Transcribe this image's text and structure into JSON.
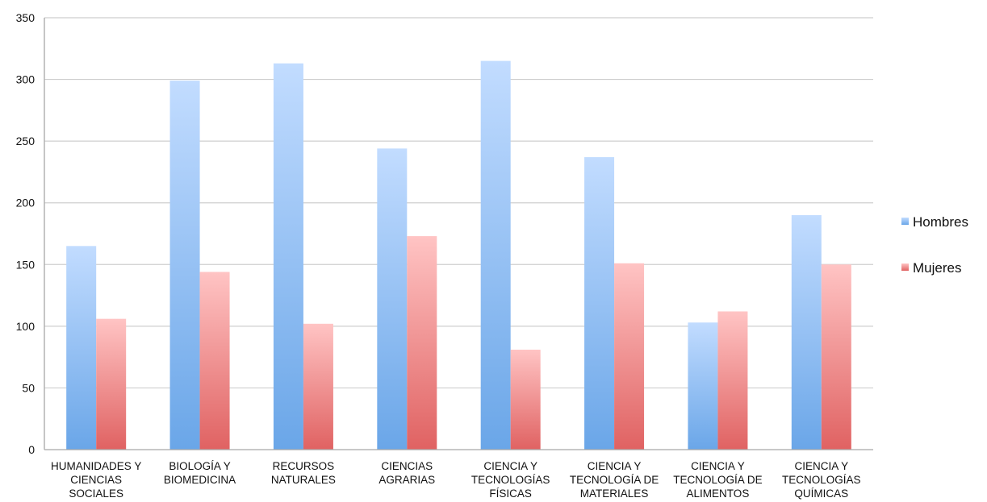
{
  "chart_data": {
    "type": "bar",
    "categories": [
      [
        "HUMANIDADES Y",
        "CIENCIAS",
        "SOCIALES"
      ],
      [
        "BIOLOGÍA Y",
        "BIOMEDICINA"
      ],
      [
        "RECURSOS",
        "NATURALES"
      ],
      [
        "CIENCIAS",
        "AGRARIAS"
      ],
      [
        "CIENCIA Y",
        "TECNOLOGÍAS",
        "FÍSICAS"
      ],
      [
        "CIENCIA Y",
        "TECNOLOGÍA DE",
        "MATERIALES"
      ],
      [
        "CIENCIA Y",
        "TECNOLOGÍA DE",
        "ALIMENTOS"
      ],
      [
        "CIENCIA Y",
        "TECNOLOGÍAS",
        "QUÍMICAS"
      ]
    ],
    "series": [
      {
        "name": "Hombres",
        "values": [
          165,
          299,
          313,
          244,
          315,
          237,
          103,
          190
        ],
        "color_top": "#c2dcff",
        "color_bottom": "#6aa6e8"
      },
      {
        "name": "Mujeres",
        "values": [
          106,
          144,
          102,
          173,
          81,
          151,
          112,
          150
        ],
        "color_top": "#ffc4c4",
        "color_bottom": "#e06262"
      }
    ],
    "yticks": [
      "0",
      "50",
      "100",
      "150",
      "200",
      "250",
      "300",
      "350"
    ],
    "ylim": [
      0,
      350
    ],
    "grid": true,
    "legend_position": "right",
    "title": "",
    "xlabel": "",
    "ylabel": ""
  }
}
